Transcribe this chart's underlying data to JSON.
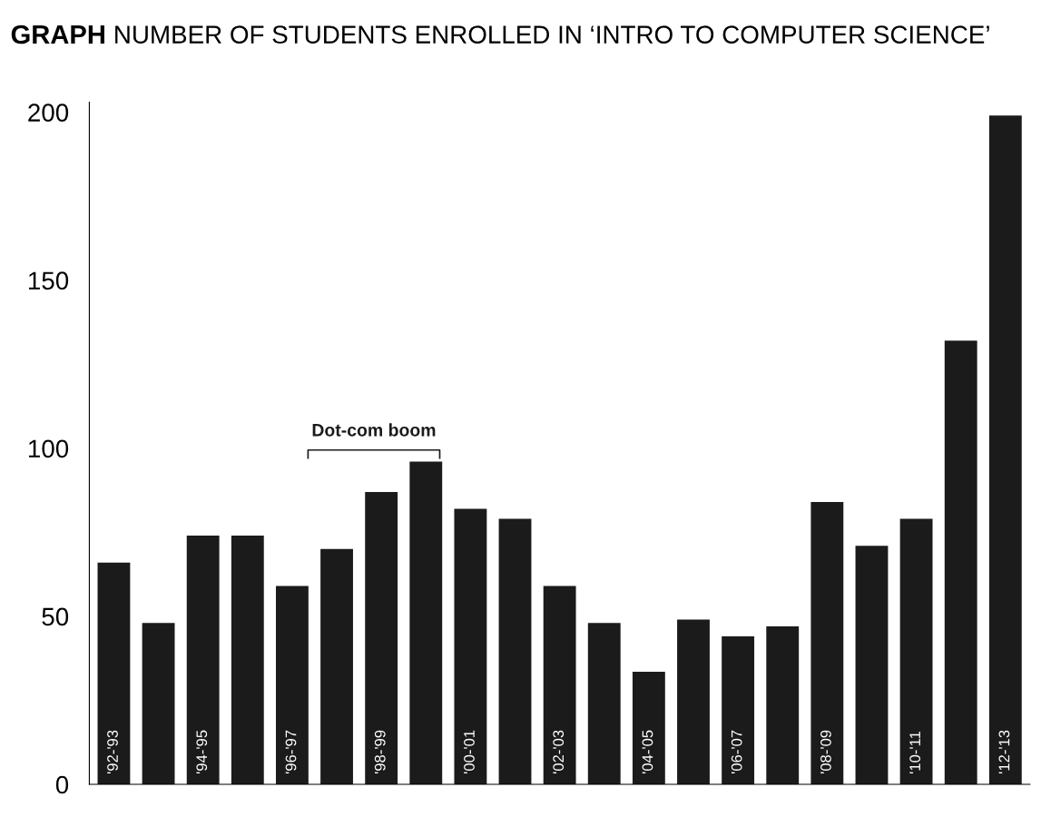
{
  "chart_data": {
    "type": "bar",
    "title": "GRAPH NUMBER OF STUDENTS ENROLLED IN ‘INTRO TO COMPUTER SCIENCE’",
    "categories": [
      "'92-'93",
      null,
      "'94-'95",
      null,
      "'96-'97",
      null,
      "'98-'99",
      null,
      "'00-'01",
      null,
      "'02-'03",
      null,
      "'04-'05",
      null,
      "'06-'07",
      null,
      "'08-'09",
      null,
      "'10-'11",
      null,
      "'12-'13"
    ],
    "values": [
      66,
      48,
      74,
      74,
      59,
      70,
      87,
      96,
      82,
      79,
      59,
      48,
      33.5,
      49,
      44,
      47,
      84,
      71,
      79,
      132,
      199
    ],
    "color": "#1b1b1b",
    "ylim": [
      0,
      203
    ],
    "yticks": [
      0,
      50,
      100,
      150,
      200
    ],
    "grid": false,
    "annotations": [
      "Dot-com boom"
    ]
  }
}
